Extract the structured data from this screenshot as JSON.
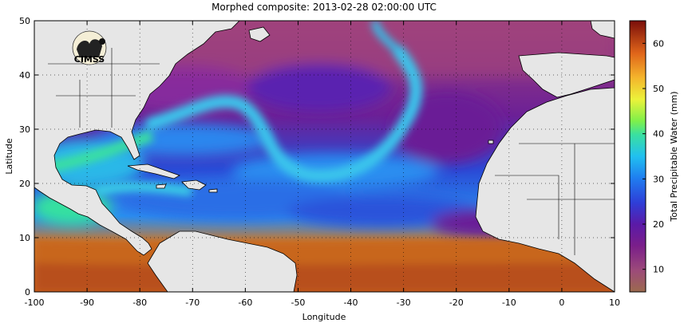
{
  "title": "Morphed composite: 2013-02-28 02:00:00 UTC",
  "logo_text": "CIMSS",
  "colors": {
    "land": "#e6e6e6",
    "coast": "#000000",
    "background": "#ffffff"
  },
  "chart_data": {
    "type": "heatmap",
    "title": "Morphed composite: 2013-02-28 02:00:00 UTC",
    "xlabel": "Longitude",
    "ylabel": "Latitude",
    "xlim": [
      -100,
      10
    ],
    "ylim": [
      0,
      50
    ],
    "x_ticks": [
      "-100",
      "-90",
      "-80",
      "-70",
      "-60",
      "-50",
      "-40",
      "-30",
      "-20",
      "-10",
      "0",
      "10"
    ],
    "y_ticks": [
      "0",
      "10",
      "20",
      "30",
      "40",
      "50"
    ],
    "grid": "dotted",
    "colorbar": {
      "label": "Total Precipitable Water (mm)",
      "range": [
        5,
        65
      ],
      "ticks": [
        "10",
        "20",
        "30",
        "40",
        "50",
        "60"
      ],
      "placement": "right"
    }
  }
}
